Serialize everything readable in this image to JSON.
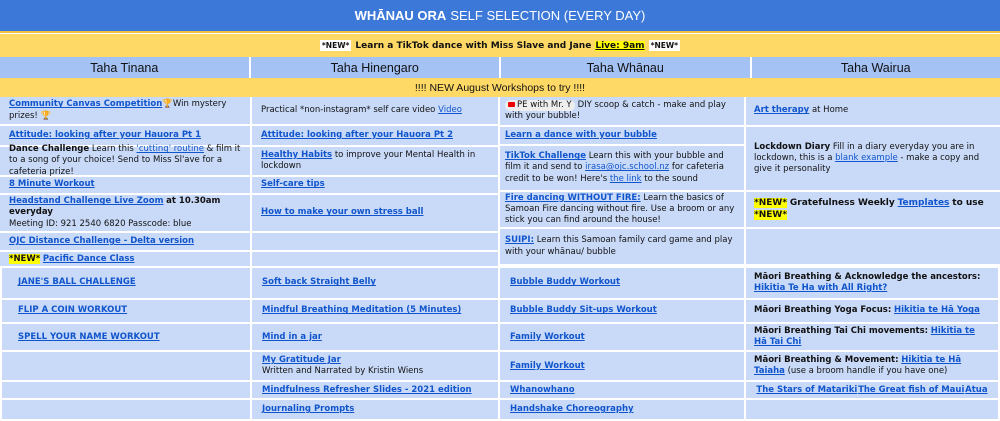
{
  "title": {
    "bold": "WHĀNAU ORA",
    "rest": "SELF SELECTION (EVERY DAY)"
  },
  "banner": {
    "tag": "*NEW*",
    "text": "Learn a TikTok dance with Miss Slave and Jane",
    "live": "Live: 9am"
  },
  "headers": [
    "Taha Tinana",
    "Taha Hinengaro",
    "Taha Whānau",
    "Taha Wairua"
  ],
  "workshops": "!!!! NEW August Workshops to try !!!!",
  "tinana": {
    "c1": {
      "link": "Community Canvas Competition",
      "text": "🏆Win mystery prizes! 🏆"
    },
    "c2": "Attitude: looking after your Hauora Pt 1",
    "c3": {
      "bold": "Dance Challenge",
      "t1": "Learn this",
      "link": "'cutting' routine",
      "t2": "& film it to a song of your choice!  Send to Miss Sl'ave for a cafeteria prize!"
    },
    "c4": "8 Minute Workout",
    "c5": {
      "link": "Headstand Challenge Live Zoom",
      "bold": "at 10.30am everyday",
      "text": "Meeting ID: 921 2540 6820  Passcode: blue"
    },
    "c6": "OJC Distance Challenge - Delta version",
    "c7": {
      "tag": "*NEW*",
      "link": "Pacific Dance Class"
    }
  },
  "hinengaro": {
    "c1": {
      "text": "Practical *non-instagram* self care video",
      "link": "Video"
    },
    "c2": "Attitude: looking after your Hauora Pt 2",
    "c3": {
      "link": "Healthy Habits",
      "text": "to improve your Mental Health in lockdown"
    },
    "c4": "Self-care tips",
    "c5": "How to make your own stress ball"
  },
  "whanau": {
    "c1": {
      "chip": "PE with Mr. Y",
      "text": "DIY scoop & catch - make and play with your bubble!"
    },
    "c2": "Learn a dance with your bubble",
    "c3": {
      "link": "TikTok Challenge",
      "t1": "Learn this with your bubble and film it and send to",
      "email": "irasa@ojc.school.nz",
      "t2": "for cafeteria credit to be won! Here's",
      "link2": "the link",
      "t3": "to the sound"
    },
    "c4": {
      "link": "Fire dancing WITHOUT FIRE:",
      "text": "Learn the basics of Samoan Fire dancing without fire. Use a broom or any stick you can find around the house!"
    },
    "c5": {
      "link": "SUIPI:",
      "text": "Learn this Samoan family card game and play with your whānau/ bubble"
    }
  },
  "wairua": {
    "c1": {
      "link": "Art therapy",
      "text": "at Home"
    },
    "c2": {
      "bold": "Lockdown Diary",
      "t1": "Fill in a diary everyday you are in lockdown, this is a",
      "link": "blank example",
      "t2": "- make a copy and give it personality"
    },
    "c3": {
      "tag": "*NEW*",
      "bold": "Gratefulness Weekly",
      "link": "Templates",
      "bold2": "to use"
    }
  },
  "bottom": [
    [
      "JANE'S BALL CHALLENGE",
      "Soft back Straight Belly",
      "Bubble Buddy Workout"
    ],
    [
      "FLIP A COIN WORKOUT",
      "Mindful Breathing Meditation (5 Minutes)",
      "Bubble Buddy Sit-ups Workout"
    ],
    [
      "SPELL YOUR NAME WORKOUT",
      "Mind in a jar",
      "Family Workout"
    ],
    [
      "",
      "My Gratitude Jar",
      "Family Workout"
    ],
    [
      "",
      "Mindfulness Refresher Slides - 2021 edition",
      "Whanowhano"
    ],
    [
      "",
      "Journaling Prompts",
      "Handshake Choreography"
    ]
  ],
  "gratitude_sub": "Written and Narrated by Kristin Wiens",
  "wairua_bottom": {
    "r1": {
      "bold": "Māori Breathing & Acknowledge the ancestors:",
      "link": "Hikitia Te Ha with All Right?"
    },
    "r2": {
      "bold": "Māori Breathing Yoga Focus:",
      "link": "Hikitia te Hā Yoga"
    },
    "r3": {
      "bold": "Māori Breathing Tai Chi movements:",
      "link": "Hikitia te Hā Tai Chi"
    },
    "r4": {
      "bold": "Māori Breathing & Movement:",
      "link": "Hikitia te Hā Taiaha",
      "text": "(use a broom handle if you have one)"
    },
    "r5": [
      "The Stars of Matariki",
      "The Great fish of Maui",
      "Atua"
    ]
  },
  "colors": {
    "title": "#3c78d8",
    "yellow": "#ffd966",
    "header": "#a4c2f4",
    "cell": "#c9daf8",
    "link": "#1155cc",
    "highlight": "#ffff00"
  }
}
